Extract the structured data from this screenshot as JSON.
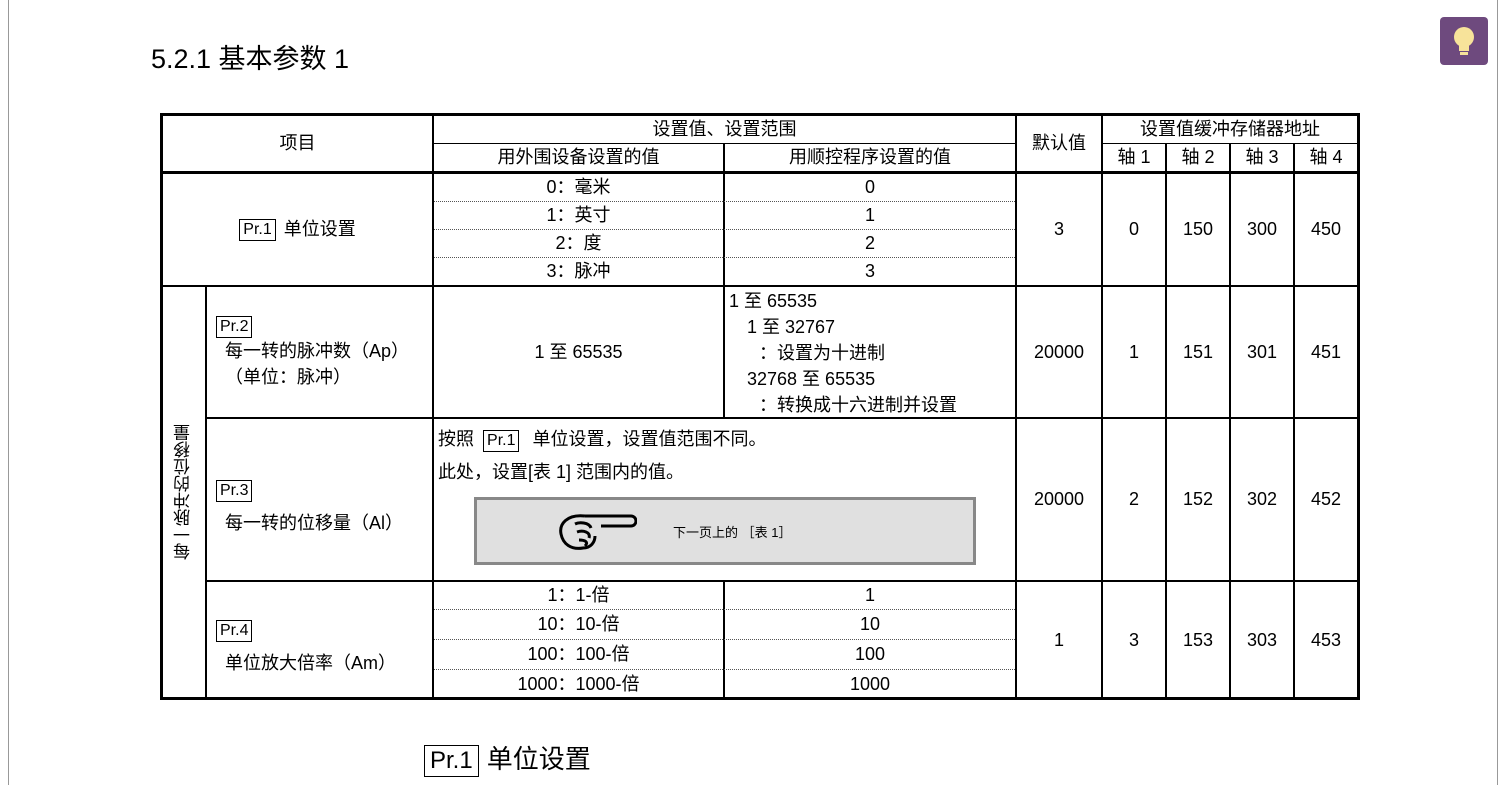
{
  "section_title": "5.2.1 基本参数 1",
  "header": {
    "item": "项目",
    "setting_range": "设置值、设置范围",
    "peripheral": "用外围设备设置的值",
    "program": "用顺控程序设置的值",
    "default": "默认值",
    "buffer": "设置值缓冲存储器地址",
    "axes": [
      "轴 1",
      "轴 2",
      "轴 3",
      "轴 4"
    ]
  },
  "group_label": "每一脉冲的位移量",
  "rows": [
    {
      "tag": "Pr.1",
      "name": "单位设置",
      "peripheral": [
        "0：毫米",
        "1：英寸",
        "2：度",
        "3：脉冲"
      ],
      "program": [
        "0",
        "1",
        "2",
        "3"
      ],
      "default": "3",
      "addr": [
        "0",
        "150",
        "300",
        "450"
      ]
    },
    {
      "tag": "Pr.2",
      "name": "每一转的脉冲数（Ap）",
      "name2": "（单位：脉冲）",
      "peripheral": "1 至 65535",
      "program": [
        "1 至 65535",
        "1 至 32767",
        "：设置为十进制",
        "32768 至 65535",
        "：转换成十六进制并设置"
      ],
      "default": "20000",
      "addr": [
        "1",
        "151",
        "301",
        "451"
      ]
    },
    {
      "tag": "Pr.3",
      "name": "每一转的位移量（Al）",
      "note_pre": "按照",
      "note_tag": "Pr.1",
      "note_post": "单位设置，设置值范围不同。",
      "note2": "此处，设置[表 1] 范围内的值。",
      "ref": "下一页上的 ［表 1］",
      "default": "20000",
      "addr": [
        "2",
        "152",
        "302",
        "452"
      ]
    },
    {
      "tag": "Pr.4",
      "name": "单位放大倍率（Am）",
      "peripheral": [
        "1：1-倍",
        "10：10-倍",
        "100：100-倍",
        "1000：1000-倍"
      ],
      "program": [
        "1",
        "10",
        "100",
        "1000"
      ],
      "default": "1",
      "addr": [
        "3",
        "153",
        "303",
        "453"
      ]
    }
  ],
  "subheading": {
    "tag": "Pr.1",
    "text": "单位设置"
  },
  "colors": {
    "bulb": "#6e4a7e",
    "ref_box": "#e0e0e0"
  }
}
